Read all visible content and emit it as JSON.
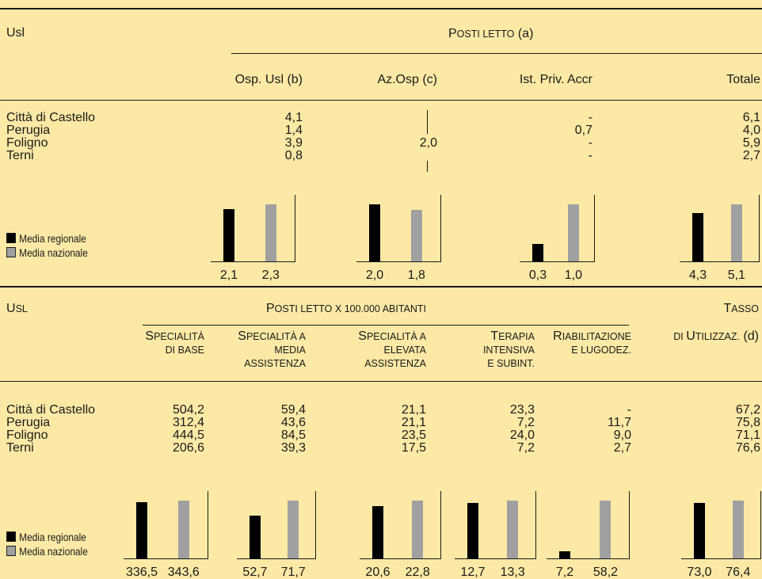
{
  "colors": {
    "background": "#fce9a6",
    "regional": "#000000",
    "national": "#a0a0a0"
  },
  "top": {
    "usl_label": "Usl",
    "group_title": "Posti letto (a)",
    "columns": [
      "Osp. Usl (b)",
      "Az.Osp (c)",
      "Ist. Priv. Accr",
      "Totale"
    ],
    "rows": [
      {
        "name": "Città di Castello",
        "osp": "4,1",
        "az": "",
        "ist": "-",
        "tot": "6,1"
      },
      {
        "name": "Perugia",
        "osp": "1,4",
        "az": "",
        "ist": "0,7",
        "tot": "4,0"
      },
      {
        "name": "Foligno",
        "osp": "3,9",
        "az": "2,0",
        "ist": "-",
        "tot": "5,9"
      },
      {
        "name": "Terni",
        "osp": "0,8",
        "az": "",
        "ist": "-",
        "tot": "2,7"
      }
    ],
    "legend": {
      "regional": "Media regionale",
      "national": "Media nazionale"
    }
  },
  "bottom": {
    "usl_label": "Usl",
    "group_title": "Posti letto x 100.000 abitanti",
    "tasso_line1": "Tasso",
    "tasso_line2": "di Utilizzaz. (d)",
    "columns": [
      {
        "l1": "Specialità",
        "l2": "di base",
        "l3": ""
      },
      {
        "l1": "Specialità a",
        "l2": "media",
        "l3": "assistenza"
      },
      {
        "l1": "Specialità a",
        "l2": "elevata",
        "l3": "assistenza"
      },
      {
        "l1": "Terapia",
        "l2": "intensiva",
        "l3": "e subint."
      },
      {
        "l1": "Riabilitazione",
        "l2": "e lugodez.",
        "l3": ""
      }
    ],
    "rows": [
      {
        "name": "Città di Castello",
        "v": [
          "504,2",
          "59,4",
          "21,1",
          "23,3",
          "-",
          "67,2"
        ]
      },
      {
        "name": "Perugia",
        "v": [
          "312,4",
          "43,6",
          "21,1",
          "7,2",
          "11,7",
          "75,8"
        ]
      },
      {
        "name": "Foligno",
        "v": [
          "444,5",
          "84,5",
          "23,5",
          "24,0",
          "9,0",
          "71,1"
        ]
      },
      {
        "name": "Terni",
        "v": [
          "206,6",
          "39,3",
          "17,5",
          "7,2",
          "2,7",
          "76,6"
        ]
      }
    ],
    "legend": {
      "regional": "Media regionale",
      "national": "Media nazionale"
    }
  },
  "chart_data": [
    {
      "type": "bar",
      "categories": [
        "Media regionale",
        "Media nazionale"
      ],
      "values": [
        2.1,
        2.3
      ],
      "labels": [
        "2,1",
        "2,3"
      ]
    },
    {
      "type": "bar",
      "categories": [
        "Media regionale",
        "Media nazionale"
      ],
      "values": [
        2.0,
        1.8
      ],
      "labels": [
        "2,0",
        "1,8"
      ]
    },
    {
      "type": "bar",
      "categories": [
        "Media regionale",
        "Media nazionale"
      ],
      "values": [
        0.3,
        1.0
      ],
      "labels": [
        "0,3",
        "1,0"
      ]
    },
    {
      "type": "bar",
      "categories": [
        "Media regionale",
        "Media nazionale"
      ],
      "values": [
        4.3,
        5.1
      ],
      "labels": [
        "4,3",
        "5,1"
      ]
    },
    {
      "type": "bar",
      "categories": [
        "Media regionale",
        "Media nazionale"
      ],
      "values": [
        336.5,
        343.6
      ],
      "labels": [
        "336,5",
        "343,6"
      ]
    },
    {
      "type": "bar",
      "categories": [
        "Media regionale",
        "Media nazionale"
      ],
      "values": [
        52.7,
        71.7
      ],
      "labels": [
        "52,7",
        "71,7"
      ]
    },
    {
      "type": "bar",
      "categories": [
        "Media regionale",
        "Media nazionale"
      ],
      "values": [
        20.6,
        22.8
      ],
      "labels": [
        "20,6",
        "22,8"
      ]
    },
    {
      "type": "bar",
      "categories": [
        "Media regionale",
        "Media nazionale"
      ],
      "values": [
        12.7,
        13.3
      ],
      "labels": [
        "12,7",
        "13,3"
      ]
    },
    {
      "type": "bar",
      "categories": [
        "Media regionale",
        "Media nazionale"
      ],
      "values": [
        7.2,
        58.2
      ],
      "labels": [
        "7,2",
        "58,2"
      ]
    },
    {
      "type": "bar",
      "categories": [
        "Media regionale",
        "Media nazionale"
      ],
      "values": [
        73.0,
        76.4
      ],
      "labels": [
        "73,0",
        "76,4"
      ]
    }
  ]
}
